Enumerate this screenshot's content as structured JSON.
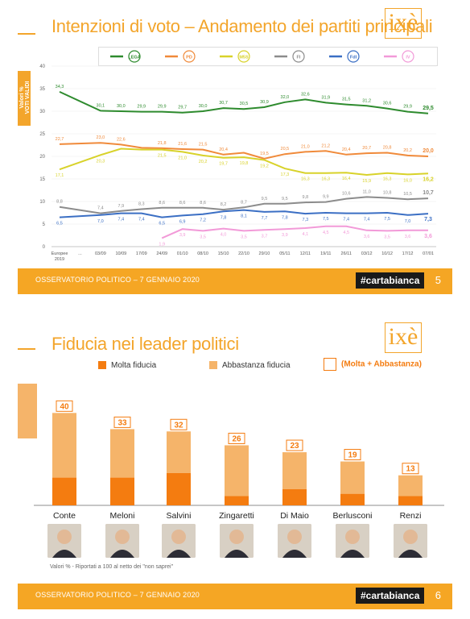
{
  "slide1": {
    "title": "Intenzioni di voto – Andamento dei partiti principali",
    "logo": "ixè",
    "y_axis_label_line1": "Valori %",
    "y_axis_label_line2": "VOTI VALIDI",
    "footer_text": "OSSERVATORIO POLITICO – 7 GENNAIO 2020",
    "footer_tag": "#cartabianca",
    "page_number": "5",
    "legend": [
      {
        "mark": "LEGA",
        "color": "#2e8b2e"
      },
      {
        "mark": "PD",
        "color": "#f08a3a"
      },
      {
        "mark": "M5S",
        "color": "#d8d22a"
      },
      {
        "mark": "FI",
        "color": "#8c8c8c"
      },
      {
        "mark": "FdI",
        "color": "#3b6fc4"
      },
      {
        "mark": "IV",
        "color": "#f29ad8"
      }
    ]
  },
  "chart_data": [
    {
      "type": "line",
      "title": "Intenzioni di voto – Andamento dei partiti principali",
      "ylim": [
        0,
        40
      ],
      "y_ticks": [
        0,
        5,
        10,
        15,
        20,
        25,
        30,
        35,
        40
      ],
      "x": [
        "Europee 2019",
        "...",
        "03/09",
        "10/09",
        "17/09",
        "24/09",
        "01/10",
        "08/10",
        "15/10",
        "22/10",
        "29/10",
        "05/11",
        "12/11",
        "19/11",
        "26/11",
        "03/12",
        "10/12",
        "17/12",
        "07/01"
      ],
      "series": [
        {
          "color": "#2e8b2e",
          "values": [
            34.3,
            null,
            30.1,
            30.0,
            29.9,
            29.9,
            29.7,
            30.0,
            30.7,
            30.5,
            30.9,
            32.0,
            32.6,
            31.9,
            31.5,
            31.2,
            30.6,
            29.9,
            29.5
          ],
          "labels": [
            "34,3",
            "",
            "30,1",
            "30,0",
            "29,9",
            "29,9",
            "29,7",
            "30,0",
            "30,7",
            "30,5",
            "30,9",
            "32,0",
            "32,6",
            "31,9",
            "31,5",
            "31,2",
            "30,6",
            "29,9",
            "29,5"
          ]
        },
        {
          "color": "#f08a3a",
          "values": [
            22.7,
            null,
            23.0,
            22.6,
            21.9,
            21.8,
            21.6,
            21.5,
            20.4,
            20.8,
            19.5,
            20.5,
            21.0,
            21.2,
            20.4,
            20.7,
            20.8,
            20.2,
            20.0
          ],
          "labels": [
            "22,7",
            "",
            "23,0",
            "22,6",
            "",
            "21,8",
            "21,6",
            "21,5",
            "20,4",
            "",
            "19,5",
            "20,5",
            "21,0",
            "21,2",
            "20,4",
            "20,7",
            "20,8",
            "20,2",
            "20,0"
          ]
        },
        {
          "color": "#d8d22a",
          "values": [
            17.1,
            null,
            20.3,
            21.7,
            21.5,
            21.5,
            21.0,
            20.2,
            19.7,
            19.8,
            19.2,
            17.3,
            16.3,
            16.3,
            16.4,
            15.9,
            16.3,
            16.0,
            16.2
          ],
          "labels": [
            "17,1",
            "",
            "20,3",
            "",
            "",
            "21,5",
            "21,0",
            "20,2",
            "19,7",
            "19,8",
            "19,2",
            "17,3",
            "16,3",
            "16,3",
            "16,4",
            "15,9",
            "16,3",
            "16,0",
            "16,2"
          ]
        },
        {
          "color": "#8c8c8c",
          "values": [
            8.8,
            null,
            7.4,
            7.9,
            8.3,
            8.6,
            8.6,
            8.6,
            8.2,
            8.7,
            9.5,
            9.5,
            9.8,
            9.9,
            10.6,
            11.0,
            10.8,
            10.5,
            10.7
          ],
          "labels": [
            "8,8",
            "",
            "7,4",
            "7,9",
            "8,3",
            "8,6",
            "8,6",
            "8,6",
            "8,2",
            "8,7",
            "9,5",
            "9,5",
            "9,8",
            "9,9",
            "10,6",
            "11,0",
            "10,8",
            "10,5",
            "10,7"
          ]
        },
        {
          "color": "#3b6fc4",
          "values": [
            6.5,
            null,
            7.0,
            7.4,
            7.4,
            6.5,
            6.9,
            7.2,
            7.8,
            8.1,
            7.7,
            7.8,
            7.3,
            7.5,
            7.4,
            7.4,
            7.5,
            7.0,
            7.3
          ],
          "labels": [
            "6,5",
            "",
            "7,0",
            "7,4",
            "7,4",
            "6,5",
            "6,9",
            "7,2",
            "7,8",
            "8,1",
            "7,7",
            "7,8",
            "7,3",
            "7,5",
            "7,4",
            "7,4",
            "7,5",
            "7,0",
            "7,3"
          ]
        },
        {
          "color": "#f29ad8",
          "values": [
            null,
            null,
            null,
            null,
            null,
            1.9,
            3.9,
            3.5,
            4.0,
            3.5,
            3.7,
            3.9,
            4.1,
            4.5,
            4.5,
            3.6,
            3.5,
            3.6,
            3.6
          ],
          "labels": [
            "",
            "",
            "",
            "",
            "",
            "1,9",
            "3,9",
            "3,5",
            "4,0",
            "3,5",
            "3,7",
            "3,9",
            "4,1",
            "4,5",
            "4,5",
            "3,6",
            "3,5",
            "3,6",
            "3,6"
          ]
        }
      ]
    },
    {
      "type": "bar",
      "title": "Fiducia nei leader politici",
      "categories": [
        "Conte",
        "Meloni",
        "Salvini",
        "Zingaretti",
        "Di Maio",
        "Berlusconi",
        "Renzi"
      ],
      "series": [
        {
          "name": "Molta fiducia",
          "color": "#f47c10",
          "values": [
            12,
            12,
            14,
            4,
            7,
            5,
            4
          ]
        },
        {
          "name": "Abbastanza fiducia",
          "color": "#f5b46a",
          "values": [
            28,
            21,
            18,
            22,
            16,
            14,
            9
          ]
        }
      ],
      "totals": [
        "40",
        "33",
        "32",
        "26",
        "23",
        "19",
        "13"
      ],
      "totals_label": "(Molta + Abbastanza)",
      "ylim": [
        0,
        45
      ]
    }
  ],
  "slide2": {
    "title": "Fiducia nei leader politici",
    "logo": "ixè",
    "note": "Valori % - Riportati a 100 al netto dei \"non saprei\"",
    "footer_text": "OSSERVATORIO POLITICO – 7 GENNAIO 2020",
    "footer_tag": "#cartabianca",
    "page_number": "6"
  }
}
